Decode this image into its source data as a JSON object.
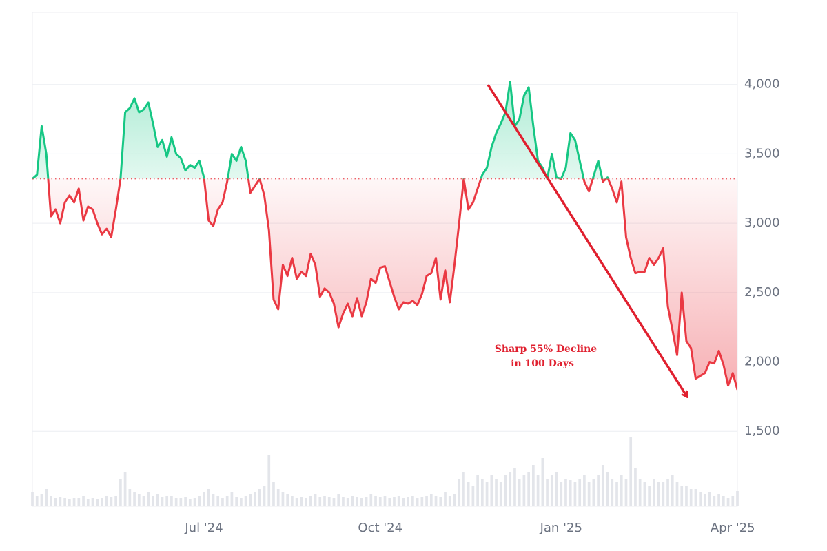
{
  "chart_data": {
    "type": "area",
    "categories": [
      null,
      null,
      null,
      null,
      null,
      null,
      null,
      null,
      null,
      null,
      null,
      null,
      null,
      null,
      null,
      null,
      null,
      null,
      null,
      null,
      null,
      null,
      null,
      null,
      null,
      null,
      null,
      null,
      null,
      null,
      null,
      null,
      null,
      null,
      null,
      null,
      null,
      "Jul '24",
      null,
      null,
      null,
      null,
      null,
      null,
      null,
      null,
      null,
      null,
      null,
      null,
      null,
      null,
      null,
      null,
      null,
      null,
      null,
      null,
      null,
      null,
      null,
      null,
      null,
      null,
      null,
      null,
      null,
      null,
      null,
      null,
      null,
      null,
      null,
      null,
      null,
      "Oct '24",
      null,
      null,
      null,
      null,
      null,
      null,
      null,
      null,
      null,
      null,
      null,
      null,
      null,
      null,
      null,
      null,
      null,
      null,
      null,
      null,
      null,
      null,
      null,
      null,
      null,
      null,
      null,
      null,
      null,
      null,
      null,
      null,
      null,
      null,
      null,
      null,
      null,
      null,
      "Jan '25",
      null,
      null,
      null,
      null,
      null,
      null,
      null,
      null,
      null,
      null,
      null,
      null,
      null,
      null,
      null,
      null,
      null,
      null,
      null,
      null,
      null,
      null,
      null,
      null,
      null,
      null,
      null,
      null,
      null,
      null,
      null,
      null,
      null,
      null,
      null,
      null,
      "Apr '25",
      null
    ],
    "values": [
      3320,
      3350,
      3700,
      3500,
      3050,
      3100,
      3000,
      3150,
      3200,
      3150,
      3250,
      3020,
      3120,
      3100,
      3000,
      2920,
      2960,
      2900,
      3100,
      3320,
      3800,
      3830,
      3900,
      3800,
      3820,
      3870,
      3720,
      3550,
      3600,
      3480,
      3620,
      3500,
      3470,
      3380,
      3420,
      3400,
      3450,
      3330,
      3020,
      2980,
      3100,
      3150,
      3300,
      3500,
      3450,
      3550,
      3450,
      3220,
      3270,
      3320,
      3200,
      2950,
      2450,
      2380,
      2700,
      2620,
      2750,
      2600,
      2650,
      2620,
      2780,
      2700,
      2470,
      2530,
      2500,
      2420,
      2250,
      2350,
      2420,
      2330,
      2460,
      2330,
      2430,
      2600,
      2570,
      2680,
      2690,
      2580,
      2470,
      2380,
      2430,
      2420,
      2440,
      2410,
      2490,
      2620,
      2640,
      2750,
      2450,
      2660,
      2430,
      2700,
      3000,
      3320,
      3100,
      3150,
      3250,
      3350,
      3400,
      3550,
      3650,
      3720,
      3800,
      4020,
      3700,
      3750,
      3920,
      3980,
      3700,
      3450,
      3400,
      3320,
      3500,
      3330,
      3320,
      3400,
      3650,
      3600,
      3450,
      3300,
      3230,
      3340,
      3450,
      3300,
      3330,
      3250,
      3150,
      3300,
      2900,
      2750,
      2640,
      2650,
      2650,
      2750,
      2700,
      2750,
      2820,
      2400,
      2230,
      2050,
      2500,
      2150,
      2100,
      1880,
      1900,
      1920,
      2000,
      1990,
      2080,
      1980,
      1830,
      1920,
      1800
    ],
    "volume": [
      20,
      15,
      18,
      25,
      15,
      12,
      14,
      12,
      10,
      12,
      12,
      15,
      10,
      12,
      10,
      12,
      15,
      14,
      15,
      40,
      50,
      25,
      20,
      18,
      15,
      20,
      15,
      18,
      14,
      15,
      15,
      12,
      12,
      14,
      10,
      12,
      15,
      20,
      25,
      18,
      15,
      12,
      15,
      20,
      14,
      12,
      15,
      18,
      20,
      25,
      30,
      75,
      35,
      25,
      20,
      18,
      15,
      12,
      14,
      12,
      15,
      18,
      14,
      15,
      14,
      12,
      18,
      14,
      12,
      15,
      14,
      12,
      14,
      18,
      15,
      14,
      15,
      12,
      14,
      15,
      12,
      14,
      15,
      12,
      14,
      15,
      18,
      15,
      14,
      20,
      15,
      18,
      40,
      50,
      35,
      30,
      45,
      40,
      35,
      45,
      40,
      35,
      45,
      50,
      55,
      40,
      45,
      50,
      60,
      45,
      70,
      40,
      45,
      50,
      35,
      40,
      38,
      35,
      40,
      45,
      35,
      40,
      45,
      60,
      50,
      40,
      35,
      45,
      40,
      100,
      55,
      40,
      35,
      30,
      40,
      35,
      35,
      40,
      45,
      35,
      30,
      30,
      25,
      25,
      20,
      18,
      20,
      15,
      18,
      15,
      12,
      15,
      22
    ],
    "up_color": "#16c784",
    "down_color": "#ea3943",
    "volume_color": "#e3e5ea",
    "ylim": [
      960,
      4520
    ],
    "yticks": [
      {
        "value": 1500,
        "label": "1,500"
      },
      {
        "value": 2000,
        "label": "2,000"
      },
      {
        "value": 2500,
        "label": "2,500"
      },
      {
        "value": 3000,
        "label": "3,000"
      },
      {
        "value": 3500,
        "label": "3,500"
      },
      {
        "value": 4000,
        "label": "4,000"
      }
    ],
    "grid": true,
    "annotations": [
      "Sharp 55% Decline",
      "in 100 Days"
    ]
  }
}
